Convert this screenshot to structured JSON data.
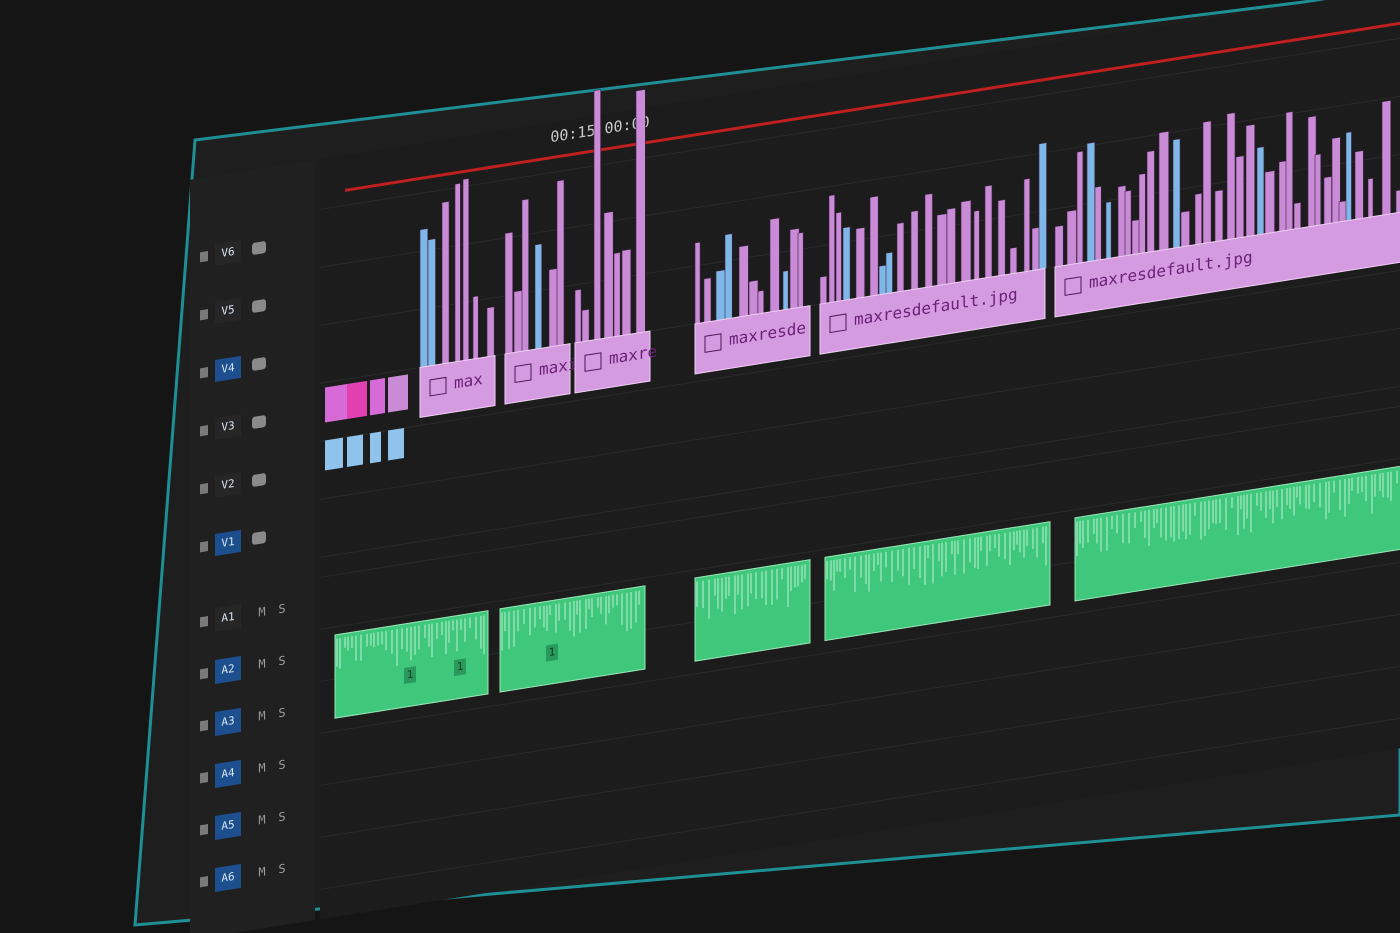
{
  "timecode": "00:15:00:00",
  "tracks": {
    "video": [
      "V6",
      "V5",
      "V4",
      "V3",
      "V2",
      "V1"
    ],
    "audio": [
      "A1",
      "A2",
      "A3",
      "A4",
      "A5",
      "A6"
    ]
  },
  "track_buttons": {
    "mute": "M",
    "solo": "S"
  },
  "video_clips": [
    {
      "label": "max"
    },
    {
      "label": "maxi"
    },
    {
      "label": "maxre"
    },
    {
      "label": "maxresde"
    },
    {
      "label": "maxresdefault.jpg"
    },
    {
      "label": "maxresdefault.jpg"
    }
  ],
  "audio_clips": [
    {
      "label": "1"
    },
    {
      "label": "1"
    },
    {
      "label": "1"
    }
  ]
}
